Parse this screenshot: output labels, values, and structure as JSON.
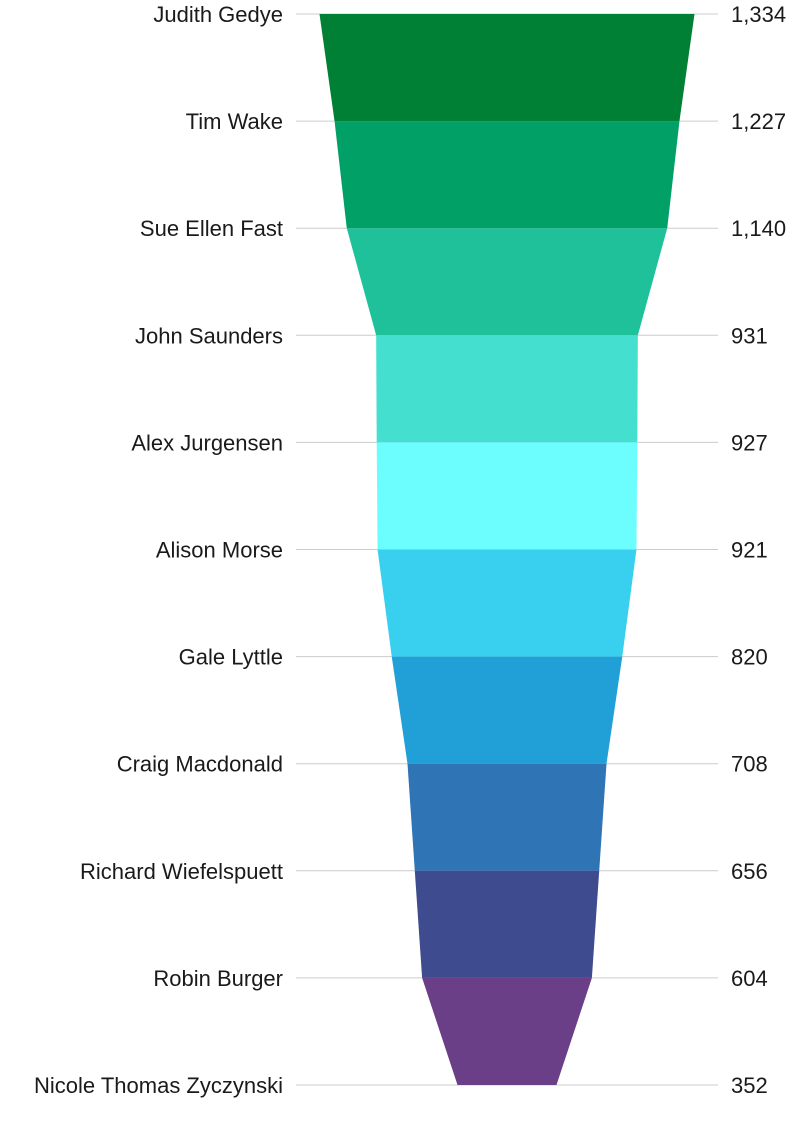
{
  "chart_data": {
    "type": "funnel",
    "categories": [
      "Judith Gedye",
      "Tim Wake",
      "Sue Ellen Fast",
      "John Saunders",
      "Alex Jurgensen",
      "Alison Morse",
      "Gale Lyttle",
      "Craig Macdonald",
      "Richard Wiefelspuett",
      "Robin Burger",
      "Nicole Thomas Zyczynski"
    ],
    "values": [
      1334,
      1227,
      1140,
      931,
      927,
      921,
      820,
      708,
      656,
      604,
      352
    ],
    "value_labels": [
      "1,334",
      "1,227",
      "1,140",
      "931",
      "927",
      "921",
      "820",
      "708",
      "656",
      "604",
      "352"
    ],
    "colors": [
      "#008035",
      "#00a066",
      "#1fc19b",
      "#45dfcf",
      "#6cfefe",
      "#38d0ee",
      "#21a0d8",
      "#2f74b5",
      "#3e4b8e",
      "#6a3f88"
    ],
    "grid": true
  }
}
